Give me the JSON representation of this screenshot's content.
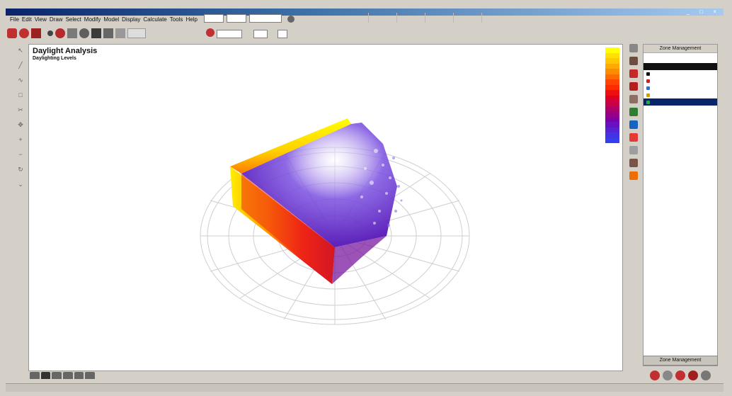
{
  "menubar": {
    "items": [
      "File",
      "Edit",
      "View",
      "Draw",
      "Select",
      "Modify",
      "Model",
      "Display",
      "Calculate",
      "Tools",
      "Help"
    ]
  },
  "toolbar": {
    "combo_a": "",
    "combo_b": "",
    "combo_c": "",
    "combo_d": "",
    "combo_e": "",
    "combo_f": ""
  },
  "viewport": {
    "title": "Daylight Analysis",
    "subtitle": "Daylighting Levels"
  },
  "legend": {
    "colors": [
      "#ffff00",
      "#ffe000",
      "#ffc800",
      "#ffaa00",
      "#ff8c00",
      "#ff6a00",
      "#ff4500",
      "#ff2a00",
      "#ee1010",
      "#dd0022",
      "#cc0044",
      "#b00066",
      "#990088",
      "#8000a8",
      "#6a10c0",
      "#5522d4",
      "#4433e4",
      "#3340f0"
    ]
  },
  "zone_panel": {
    "title": "Zone Management",
    "button": "Zone Management",
    "colors": [
      "#111111",
      "#cc2222",
      "#2b6fd1",
      "#c9a000",
      "#22aa44"
    ]
  },
  "right_tools": {
    "colors": [
      "#888888",
      "#6d4c41",
      "#c62828",
      "#b71c1c",
      "#8d6e63",
      "#2e7d32",
      "#1565c0",
      "#e53935",
      "#9e9e9e",
      "#795548",
      "#ef6c00"
    ]
  }
}
